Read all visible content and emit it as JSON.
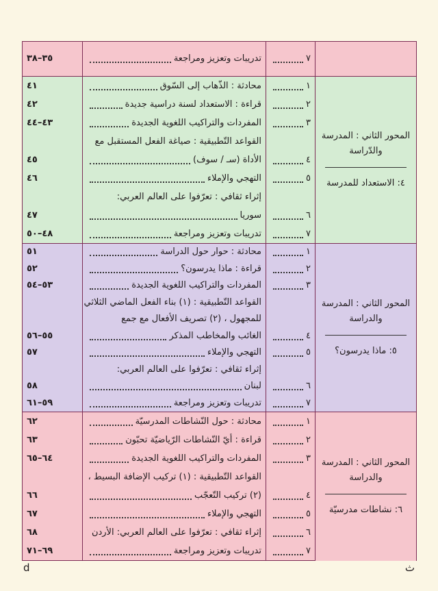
{
  "sections": [
    {
      "items": [
        {
          "number": "٧",
          "lines": [
            "تدريبات وتعزيز ومراجعة"
          ],
          "pages": "٣٥–٣٨"
        }
      ]
    },
    {
      "axis": "المحور الثاني : المدرسة والدّراسة",
      "unit": "٤: الاستعداد للمدرسة",
      "items": [
        {
          "number": "١",
          "lines": [
            "محادثة : الذّهاب إلى السّوق"
          ],
          "pages": "٤١"
        },
        {
          "number": "٢",
          "lines": [
            "قراءة : الاستعداد لسنة دراسية جديدة"
          ],
          "pages": "٤٢"
        },
        {
          "number": "٣",
          "lines": [
            "المفردات والتراكيب اللغوية الجديدة"
          ],
          "pages": "٤٣–٤٤"
        },
        {
          "number": "٤",
          "lines": [
            "القواعد التّطبيقية : صياغة الفعل المستقبل مع",
            "الأداة (سـ / سوف)"
          ],
          "pages": "٤٥"
        },
        {
          "number": "٥",
          "lines": [
            "التهجي والإملاء"
          ],
          "pages": "٤٦"
        },
        {
          "number": "٦",
          "lines": [
            "إثراء ثقافي : تعرّفوا على العالم العربي:",
            "سوريا"
          ],
          "pages": "٤٧"
        },
        {
          "number": "٧",
          "lines": [
            "تدريبات وتعزيز ومراجعة"
          ],
          "pages": "٤٨–٥٠"
        }
      ]
    },
    {
      "axis": "المحور الثاني : المدرسة والدراسة",
      "unit": "٥: ماذا يدرسون؟",
      "items": [
        {
          "number": "١",
          "lines": [
            "محادثة : حوار حول الدراسة"
          ],
          "pages": "٥١"
        },
        {
          "number": "٢",
          "lines": [
            "قراءة : ماذا يدرسون؟"
          ],
          "pages": "٥٢"
        },
        {
          "number": "٣",
          "lines": [
            "المفردات والتراكيب اللغوية الجديدة"
          ],
          "pages": "٥٣–٥٤"
        },
        {
          "number": "٤",
          "lines": [
            "القواعد التّطبيقية : (١) بناء الفعل الماضي الثلاثي",
            "للمجهول ، (٢) تصريف الأفعال مع جمع",
            "الغائب والمخاطب المذكر"
          ],
          "pages": "٥٥–٥٦"
        },
        {
          "number": "٥",
          "lines": [
            "التهجي والإملاء"
          ],
          "pages": "٥٧"
        },
        {
          "number": "٦",
          "lines": [
            "إثراء ثقافي : تعرّفوا على العالم العربي:",
            "لبنان"
          ],
          "pages": "٥٨"
        },
        {
          "number": "٧",
          "lines": [
            "تدريبات وتعزيز ومراجعة"
          ],
          "pages": "٥٩–٦١"
        }
      ]
    },
    {
      "axis": "المحور الثاني : المدرسة والدراسة",
      "unit": "٦: نشاطات مدرسيّة",
      "items": [
        {
          "number": "١",
          "lines": [
            "محادثة : حول النّشاطات المدرسيّة"
          ],
          "pages": "٦٢"
        },
        {
          "number": "٢",
          "lines": [
            "قراءة : أيّ النّشاطات الرّياضيّة تحبّون"
          ],
          "pages": "٦٣"
        },
        {
          "number": "٣",
          "lines": [
            "المفردات والتراكيب اللغوية الجديدة"
          ],
          "pages": "٦٤–٦٥"
        },
        {
          "number": "٤",
          "lines": [
            "القواعد التّطبيقية : (١) تركيب الإضافة البسيط ،",
            "(٢) تركيب التّعجّب"
          ],
          "pages": "٦٦"
        },
        {
          "number": "٥",
          "lines": [
            "التهجي والإملاء"
          ],
          "pages": "٦٧"
        },
        {
          "number": "٦",
          "lines": [
            "إثراء ثقافي : تعرّفوا على العالم العربي: الأردن"
          ],
          "pages": "٦٨"
        },
        {
          "number": "٧",
          "lines": [
            "تدريبات وتعزيز ومراجعة"
          ],
          "pages": "٦٩–٧١"
        }
      ]
    }
  ],
  "footer": {
    "left": "d",
    "right": "ث"
  }
}
